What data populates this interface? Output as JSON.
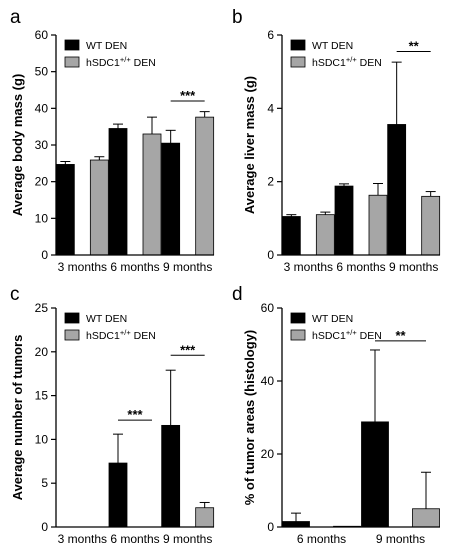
{
  "colors": {
    "wt": "#000000",
    "hsdc": "#a6a6a6"
  },
  "chart_data": [
    {
      "panel": "a",
      "type": "bar",
      "ylabel": "Average body mass (g)",
      "categories": [
        "3 months",
        "6 months",
        "9 months"
      ],
      "ylim": [
        0,
        60
      ],
      "yticks": [
        0,
        10,
        20,
        30,
        40,
        50,
        60
      ],
      "legend": "top-left",
      "series": [
        {
          "name": "WT DEN",
          "values": [
            24.7,
            34.5,
            30.5
          ],
          "errors": [
            0.8,
            1.2,
            3.5
          ]
        },
        {
          "name": "hSDC1",
          "name_sup": "+/+",
          "name_suffix": " DEN",
          "values": [
            25.9,
            33.0,
            37.6
          ],
          "errors": [
            0.9,
            4.6,
            1.5
          ]
        }
      ],
      "significance": [
        {
          "category": 2,
          "label": "***",
          "y": 42.0
        }
      ]
    },
    {
      "panel": "b",
      "type": "bar",
      "ylabel": "Average liver mass (g)",
      "categories": [
        "3 months",
        "6 months",
        "9 months"
      ],
      "ylim": [
        0,
        6
      ],
      "yticks": [
        0,
        2,
        4,
        6
      ],
      "legend": "top-left",
      "series": [
        {
          "name": "WT DEN",
          "values": [
            1.05,
            1.88,
            3.56
          ],
          "errors": [
            0.05,
            0.06,
            1.7
          ]
        },
        {
          "name": "hSDC1",
          "name_sup": "+/+",
          "name_suffix": " DEN",
          "values": [
            1.1,
            1.63,
            1.6
          ],
          "errors": [
            0.07,
            0.32,
            0.13
          ]
        }
      ],
      "significance": [
        {
          "category": 2,
          "label": "**",
          "y": 5.55
        }
      ]
    },
    {
      "panel": "c",
      "type": "bar",
      "ylabel": "Average number of tumors",
      "categories": [
        "3 months",
        "6 months",
        "9 months"
      ],
      "ylim": [
        0,
        25
      ],
      "yticks": [
        0,
        5,
        10,
        15,
        20,
        25
      ],
      "legend": "top-left",
      "series": [
        {
          "name": "WT DEN",
          "values": [
            0,
            7.3,
            11.6
          ],
          "errors": [
            0,
            3.3,
            6.3
          ]
        },
        {
          "name": "hSDC1",
          "name_sup": "+/+",
          "name_suffix": " DEN",
          "values": [
            0,
            0,
            2.2
          ],
          "errors": [
            0,
            0,
            0.6
          ]
        }
      ],
      "significance": [
        {
          "category": 1,
          "label": "***",
          "y": 12.2
        },
        {
          "category": 2,
          "label": "***",
          "y": 19.6
        }
      ]
    },
    {
      "panel": "d",
      "type": "bar",
      "ylabel": "% of tumor areas (histology)",
      "categories": [
        "6 months",
        "9 months"
      ],
      "ylim": [
        0,
        60
      ],
      "yticks": [
        0,
        20,
        40,
        60
      ],
      "legend": "top-left",
      "series": [
        {
          "name": "WT DEN",
          "values": [
            1.5,
            28.8
          ],
          "errors": [
            2.3,
            19.7
          ]
        },
        {
          "name": "hSDC1",
          "name_sup": "+/+",
          "name_suffix": " DEN",
          "values": [
            0.2,
            5.0
          ],
          "errors": [
            0,
            10.0
          ]
        }
      ],
      "significance": [
        {
          "category": 1,
          "label": "**",
          "y": 51.0
        }
      ]
    }
  ]
}
